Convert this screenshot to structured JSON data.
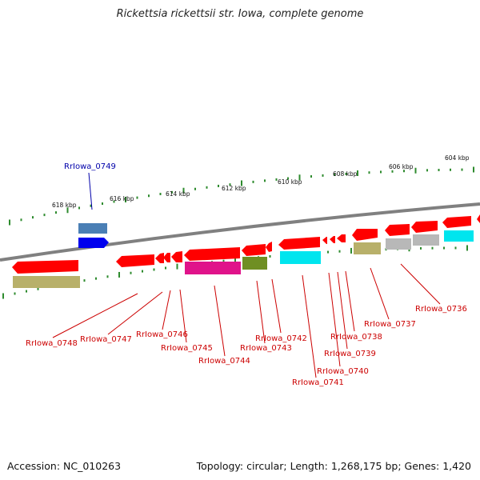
{
  "title": "Rickettsia rickettsii str. Iowa, complete genome",
  "footer": {
    "accession": "Accession: NC_010263",
    "summary": "Topology: circular; Length: 1,268,175 bp; Genes: 1,420"
  },
  "scale_labels": [
    "618 kbp",
    "616 kbp",
    "614 kbp",
    "612 kbp",
    "610 kbp",
    "608 kbp",
    "606 kbp",
    "604 kbp"
  ],
  "gene_labels": [
    {
      "text": "RrIowa_0749",
      "color": "#0000aa"
    },
    {
      "text": "RrIowa_0748",
      "color": "#cc0000"
    },
    {
      "text": "RrIowa_0747",
      "color": "#cc0000"
    },
    {
      "text": "RrIowa_0746",
      "color": "#cc0000"
    },
    {
      "text": "RrIowa_0745",
      "color": "#cc0000"
    },
    {
      "text": "RrIowa_0744",
      "color": "#cc0000"
    },
    {
      "text": "RrIowa_0743",
      "color": "#cc0000"
    },
    {
      "text": "RrIowa_0742",
      "color": "#cc0000"
    },
    {
      "text": "RrIowa_0741",
      "color": "#cc0000"
    },
    {
      "text": "RrIowa_0740",
      "color": "#cc0000"
    },
    {
      "text": "RrIowa_0739",
      "color": "#cc0000"
    },
    {
      "text": "RrIowa_0738",
      "color": "#cc0000"
    },
    {
      "text": "RrIowa_0737",
      "color": "#cc0000"
    },
    {
      "text": "RrIowa_0736",
      "color": "#cc0000"
    }
  ],
  "colors": {
    "cds_red": "#ff0000",
    "blue": "#0000ee",
    "steelblue": "#4a7fb5",
    "khaki": "#b8b06a",
    "magenta": "#e0138a",
    "olive": "#6f8f23",
    "cyan": "#00e5ee",
    "grey": "#b8b8b8",
    "backbone": "#808080",
    "tick_green": "#2e8b2e"
  }
}
